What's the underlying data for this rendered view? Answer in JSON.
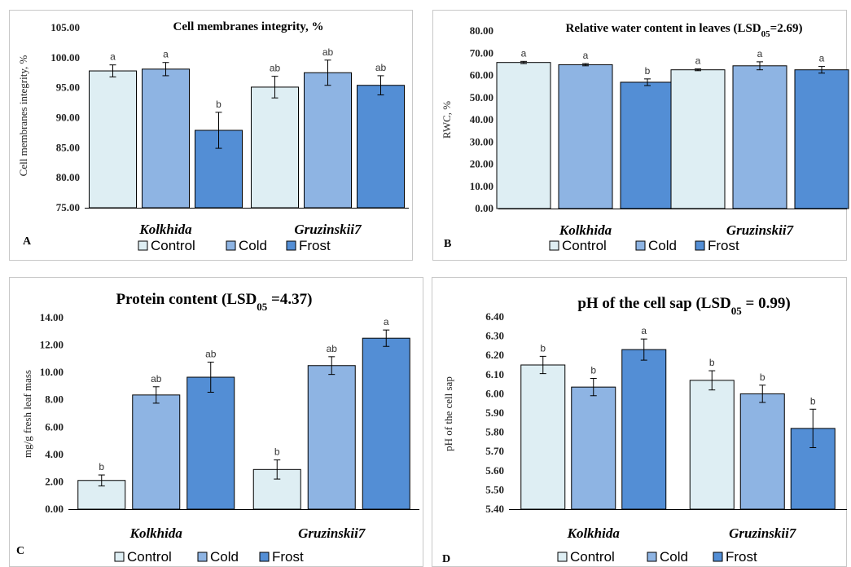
{
  "legend": {
    "items": [
      "Control",
      "Cold",
      "Frost"
    ]
  },
  "colors": {
    "Control": "#deeef3",
    "Cold": "#8eb4e3",
    "Frost": "#538ed5"
  },
  "chart_data": [
    {
      "type": "bar",
      "panel_label": "A",
      "title": "Cell membranes  integrity, %",
      "xlabel": "",
      "ylabel": "Cell membranes  integrity,  %",
      "categories": [
        "Kolkhida",
        "Gruzinskii7"
      ],
      "series": [
        {
          "name": "Control",
          "values": [
            97.8,
            95.1
          ],
          "errors": [
            1.0,
            1.8
          ],
          "letters": [
            "a",
            "ab"
          ]
        },
        {
          "name": "Cold",
          "values": [
            98.1,
            97.5
          ],
          "errors": [
            1.1,
            2.1
          ],
          "letters": [
            "a",
            "ab"
          ]
        },
        {
          "name": "Frost",
          "values": [
            87.9,
            95.4
          ],
          "errors": [
            3.0,
            1.6
          ],
          "letters": [
            "b",
            "ab"
          ]
        }
      ],
      "ylim": [
        75,
        105
      ],
      "yticks": [
        "75.00",
        "80.00",
        "85.00",
        "90.00",
        "95.00",
        "100.00",
        "105.00"
      ],
      "grid": false,
      "legend": "bottom"
    },
    {
      "type": "bar",
      "panel_label": "B",
      "title": "Relative water content in leaves (LSD",
      "title_sub": "05",
      "title_tail": "=2.69)",
      "xlabel": "",
      "ylabel": "RWC, %",
      "categories": [
        "Kolkhida",
        "Gruzinskii7"
      ],
      "series": [
        {
          "name": "Control",
          "values": [
            65.8,
            62.5
          ],
          "errors": [
            0.5,
            0.4
          ],
          "letters": [
            "a",
            "a"
          ]
        },
        {
          "name": "Cold",
          "values": [
            64.8,
            64.3
          ],
          "errors": [
            0.5,
            1.8
          ],
          "letters": [
            "a",
            "a"
          ]
        },
        {
          "name": "Frost",
          "values": [
            56.9,
            62.5
          ],
          "errors": [
            1.5,
            1.5
          ],
          "letters": [
            "b",
            "a"
          ]
        }
      ],
      "ylim": [
        0,
        80
      ],
      "yticks": [
        "0.00",
        "10.00",
        "20.00",
        "30.00",
        "40.00",
        "50.00",
        "60.00",
        "70.00",
        "80.00"
      ],
      "grid": false,
      "legend": "bottom"
    },
    {
      "type": "bar",
      "panel_label": "C",
      "title": "Protein content (LSD",
      "title_sub": "05",
      "title_tail": " =4.37)",
      "xlabel": "",
      "ylabel": "mg/g fresh leaf mass",
      "categories": [
        "Kolkhida",
        "Gruzinskii7"
      ],
      "series": [
        {
          "name": "Control",
          "values": [
            2.1,
            2.9
          ],
          "errors": [
            0.4,
            0.7
          ],
          "letters": [
            "b",
            "b"
          ]
        },
        {
          "name": "Cold",
          "values": [
            8.35,
            10.5
          ],
          "errors": [
            0.6,
            0.65
          ],
          "letters": [
            "ab",
            "ab"
          ]
        },
        {
          "name": "Frost",
          "values": [
            9.65,
            12.5
          ],
          "errors": [
            1.1,
            0.6
          ],
          "letters": [
            "ab",
            "a"
          ]
        }
      ],
      "ylim": [
        0,
        14
      ],
      "yticks": [
        "0.00",
        "2.00",
        "4.00",
        "6.00",
        "8.00",
        "10.00",
        "12.00",
        "14.00"
      ],
      "grid": false,
      "legend": "bottom"
    },
    {
      "type": "bar",
      "panel_label": "D",
      "title": "pH of the cell sap (LSD",
      "title_sub": "05",
      "title_tail": " = 0.99)",
      "xlabel": "",
      "ylabel": "pH of the cell sap",
      "categories": [
        "Kolkhida",
        "Gruzinskii7"
      ],
      "series": [
        {
          "name": "Control",
          "values": [
            6.15,
            6.07
          ],
          "errors": [
            0.045,
            0.05
          ],
          "letters": [
            "b",
            "b"
          ]
        },
        {
          "name": "Cold",
          "values": [
            6.035,
            6.0
          ],
          "errors": [
            0.045,
            0.045
          ],
          "letters": [
            "b",
            "b"
          ]
        },
        {
          "name": "Frost",
          "values": [
            6.23,
            5.82
          ],
          "errors": [
            0.055,
            0.1
          ],
          "letters": [
            "a",
            "b"
          ]
        }
      ],
      "ylim": [
        5.4,
        6.4
      ],
      "yticks": [
        "5.40",
        "5.50",
        "5.60",
        "5.70",
        "5.80",
        "5.90",
        "6.00",
        "6.10",
        "6.20",
        "6.30",
        "6.40"
      ],
      "grid": false,
      "legend": "bottom"
    }
  ]
}
